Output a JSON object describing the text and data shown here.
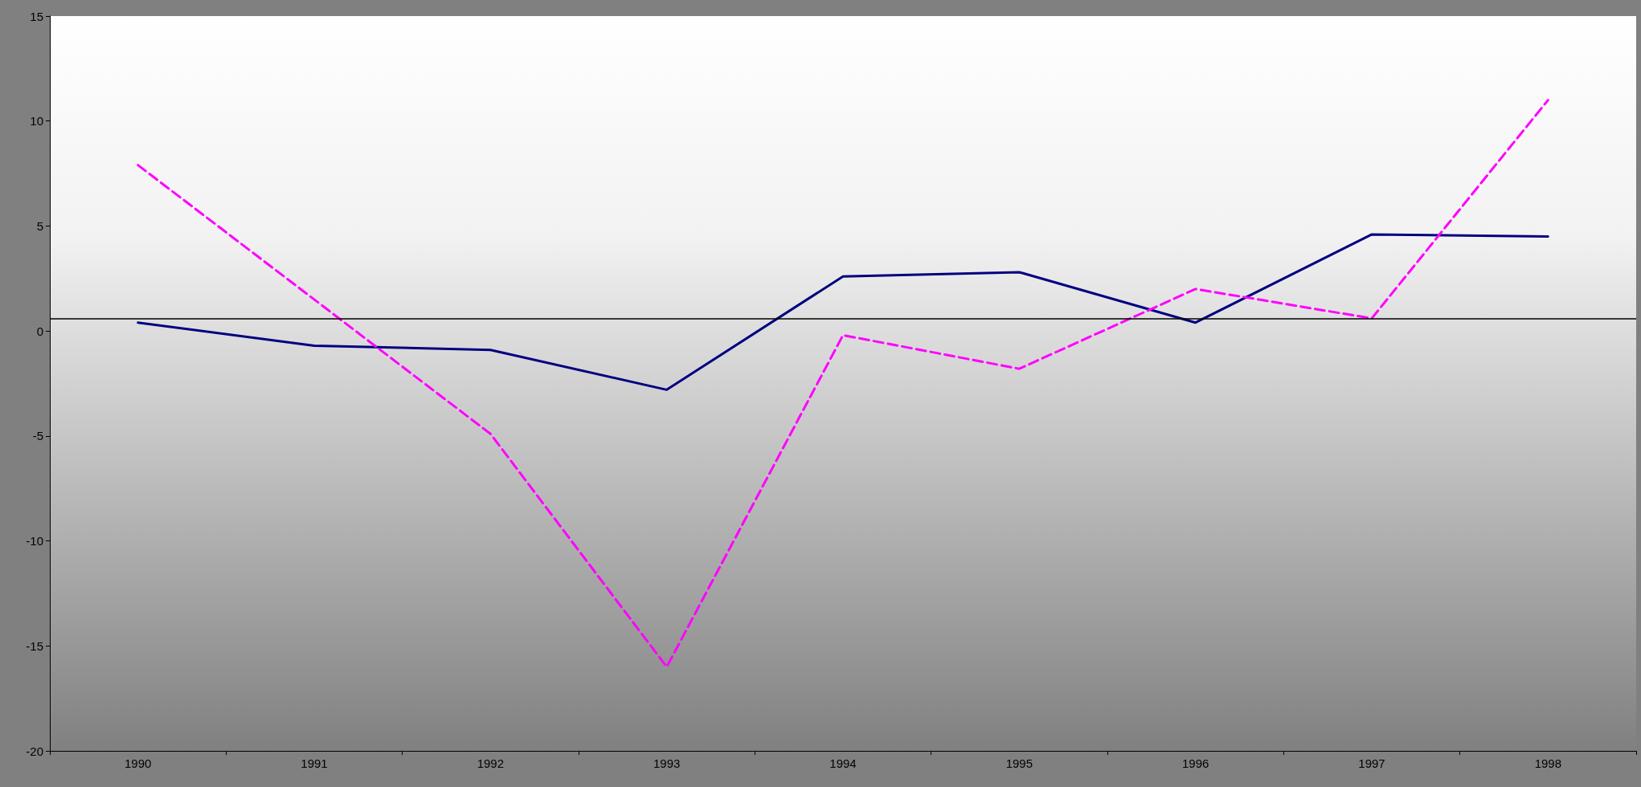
{
  "chart_data": {
    "type": "line",
    "categories": [
      "1990",
      "1991",
      "1992",
      "1993",
      "1994",
      "1995",
      "1996",
      "1997",
      "1998"
    ],
    "series": [
      {
        "color": "#000080",
        "line_style": "solid",
        "values": [
          0.4,
          -0.7,
          -0.9,
          -2.8,
          2.6,
          2.8,
          0.4,
          4.6,
          4.5
        ]
      },
      {
        "color": "#ff00ff",
        "line_style": "dashed",
        "values": [
          7.9,
          1.5,
          -4.9,
          -16,
          -0.2,
          -1.8,
          2,
          0.6,
          11
        ]
      }
    ],
    "ylim": [
      -20,
      15
    ],
    "yticks": [
      -20,
      -15,
      -10,
      -5,
      0,
      5,
      10,
      15
    ],
    "grid": false,
    "marker": "none",
    "ref_lines": [
      {
        "axis": "y",
        "value": 0.6,
        "color": "#000000"
      }
    ]
  }
}
